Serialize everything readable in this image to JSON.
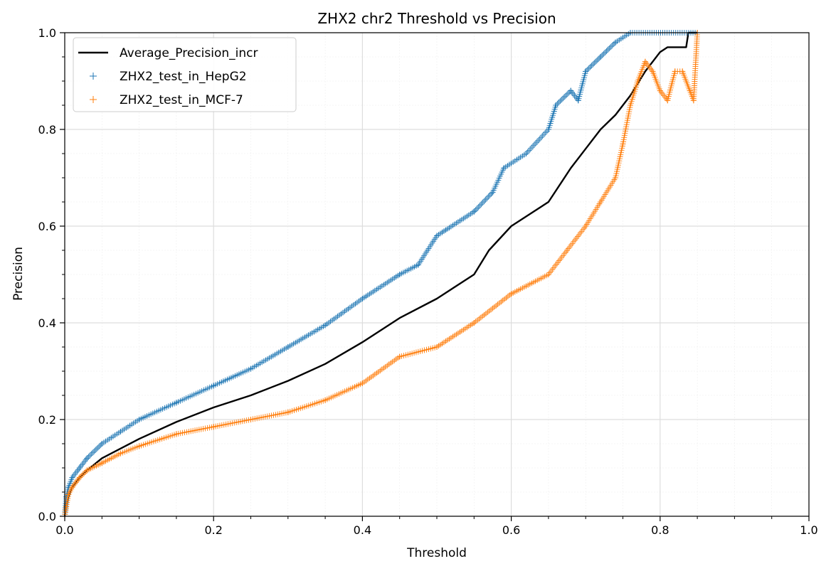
{
  "chart_data": {
    "type": "scatter",
    "title": "ZHX2 chr2 Threshold vs Precision",
    "xlabel": "Threshold",
    "ylabel": "Precision",
    "xlim": [
      0.0,
      1.0
    ],
    "ylim": [
      0.0,
      1.0
    ],
    "xticks": [
      "0.0",
      "0.2",
      "0.4",
      "0.6",
      "0.8",
      "1.0"
    ],
    "yticks": [
      "0.0",
      "0.2",
      "0.4",
      "0.6",
      "0.8",
      "1.0"
    ],
    "grid": true,
    "minor_grid": true,
    "legend_position": "upper-left",
    "series": [
      {
        "name": "Average_Precision_incr",
        "kind": "line",
        "color": "#000000",
        "points": [
          [
            0.0,
            0.0
          ],
          [
            0.002,
            0.02
          ],
          [
            0.005,
            0.04
          ],
          [
            0.01,
            0.06
          ],
          [
            0.02,
            0.08
          ],
          [
            0.03,
            0.095
          ],
          [
            0.05,
            0.12
          ],
          [
            0.075,
            0.14
          ],
          [
            0.1,
            0.16
          ],
          [
            0.15,
            0.195
          ],
          [
            0.2,
            0.225
          ],
          [
            0.25,
            0.25
          ],
          [
            0.3,
            0.28
          ],
          [
            0.35,
            0.315
          ],
          [
            0.4,
            0.36
          ],
          [
            0.45,
            0.41
          ],
          [
            0.5,
            0.45
          ],
          [
            0.55,
            0.5
          ],
          [
            0.57,
            0.55
          ],
          [
            0.6,
            0.6
          ],
          [
            0.63,
            0.63
          ],
          [
            0.65,
            0.65
          ],
          [
            0.68,
            0.72
          ],
          [
            0.7,
            0.76
          ],
          [
            0.72,
            0.8
          ],
          [
            0.74,
            0.83
          ],
          [
            0.76,
            0.87
          ],
          [
            0.78,
            0.92
          ],
          [
            0.8,
            0.96
          ],
          [
            0.81,
            0.97
          ],
          [
            0.835,
            0.97
          ],
          [
            0.838,
            1.0
          ],
          [
            0.85,
            1.0
          ]
        ]
      },
      {
        "name": "ZHX2_test_in_HepG2",
        "kind": "scatter",
        "marker": "+",
        "color": "#1f77b4",
        "points": [
          [
            0.0,
            0.0
          ],
          [
            0.002,
            0.04
          ],
          [
            0.005,
            0.06
          ],
          [
            0.01,
            0.08
          ],
          [
            0.02,
            0.1
          ],
          [
            0.03,
            0.12
          ],
          [
            0.05,
            0.15
          ],
          [
            0.075,
            0.175
          ],
          [
            0.1,
            0.2
          ],
          [
            0.15,
            0.235
          ],
          [
            0.2,
            0.27
          ],
          [
            0.25,
            0.305
          ],
          [
            0.3,
            0.35
          ],
          [
            0.35,
            0.395
          ],
          [
            0.4,
            0.45
          ],
          [
            0.45,
            0.5
          ],
          [
            0.475,
            0.52
          ],
          [
            0.5,
            0.58
          ],
          [
            0.55,
            0.63
          ],
          [
            0.575,
            0.67
          ],
          [
            0.59,
            0.72
          ],
          [
            0.62,
            0.75
          ],
          [
            0.65,
            0.8
          ],
          [
            0.66,
            0.85
          ],
          [
            0.68,
            0.88
          ],
          [
            0.69,
            0.86
          ],
          [
            0.7,
            0.92
          ],
          [
            0.72,
            0.95
          ],
          [
            0.74,
            0.98
          ],
          [
            0.76,
            1.0
          ],
          [
            0.85,
            1.0
          ]
        ]
      },
      {
        "name": "ZHX2_test_in_MCF-7",
        "kind": "scatter",
        "marker": "+",
        "color": "#ff7f0e",
        "points": [
          [
            0.0,
            0.0
          ],
          [
            0.002,
            0.02
          ],
          [
            0.005,
            0.045
          ],
          [
            0.01,
            0.06
          ],
          [
            0.02,
            0.08
          ],
          [
            0.03,
            0.095
          ],
          [
            0.05,
            0.11
          ],
          [
            0.075,
            0.13
          ],
          [
            0.1,
            0.145
          ],
          [
            0.15,
            0.17
          ],
          [
            0.2,
            0.185
          ],
          [
            0.25,
            0.2
          ],
          [
            0.3,
            0.215
          ],
          [
            0.35,
            0.24
          ],
          [
            0.4,
            0.275
          ],
          [
            0.45,
            0.33
          ],
          [
            0.5,
            0.35
          ],
          [
            0.55,
            0.4
          ],
          [
            0.6,
            0.46
          ],
          [
            0.65,
            0.5
          ],
          [
            0.675,
            0.55
          ],
          [
            0.7,
            0.6
          ],
          [
            0.72,
            0.65
          ],
          [
            0.74,
            0.7
          ],
          [
            0.75,
            0.77
          ],
          [
            0.76,
            0.85
          ],
          [
            0.77,
            0.9
          ],
          [
            0.78,
            0.94
          ],
          [
            0.79,
            0.92
          ],
          [
            0.8,
            0.88
          ],
          [
            0.81,
            0.86
          ],
          [
            0.82,
            0.92
          ],
          [
            0.83,
            0.92
          ],
          [
            0.84,
            0.88
          ],
          [
            0.845,
            0.86
          ],
          [
            0.85,
            1.0
          ]
        ]
      }
    ]
  }
}
